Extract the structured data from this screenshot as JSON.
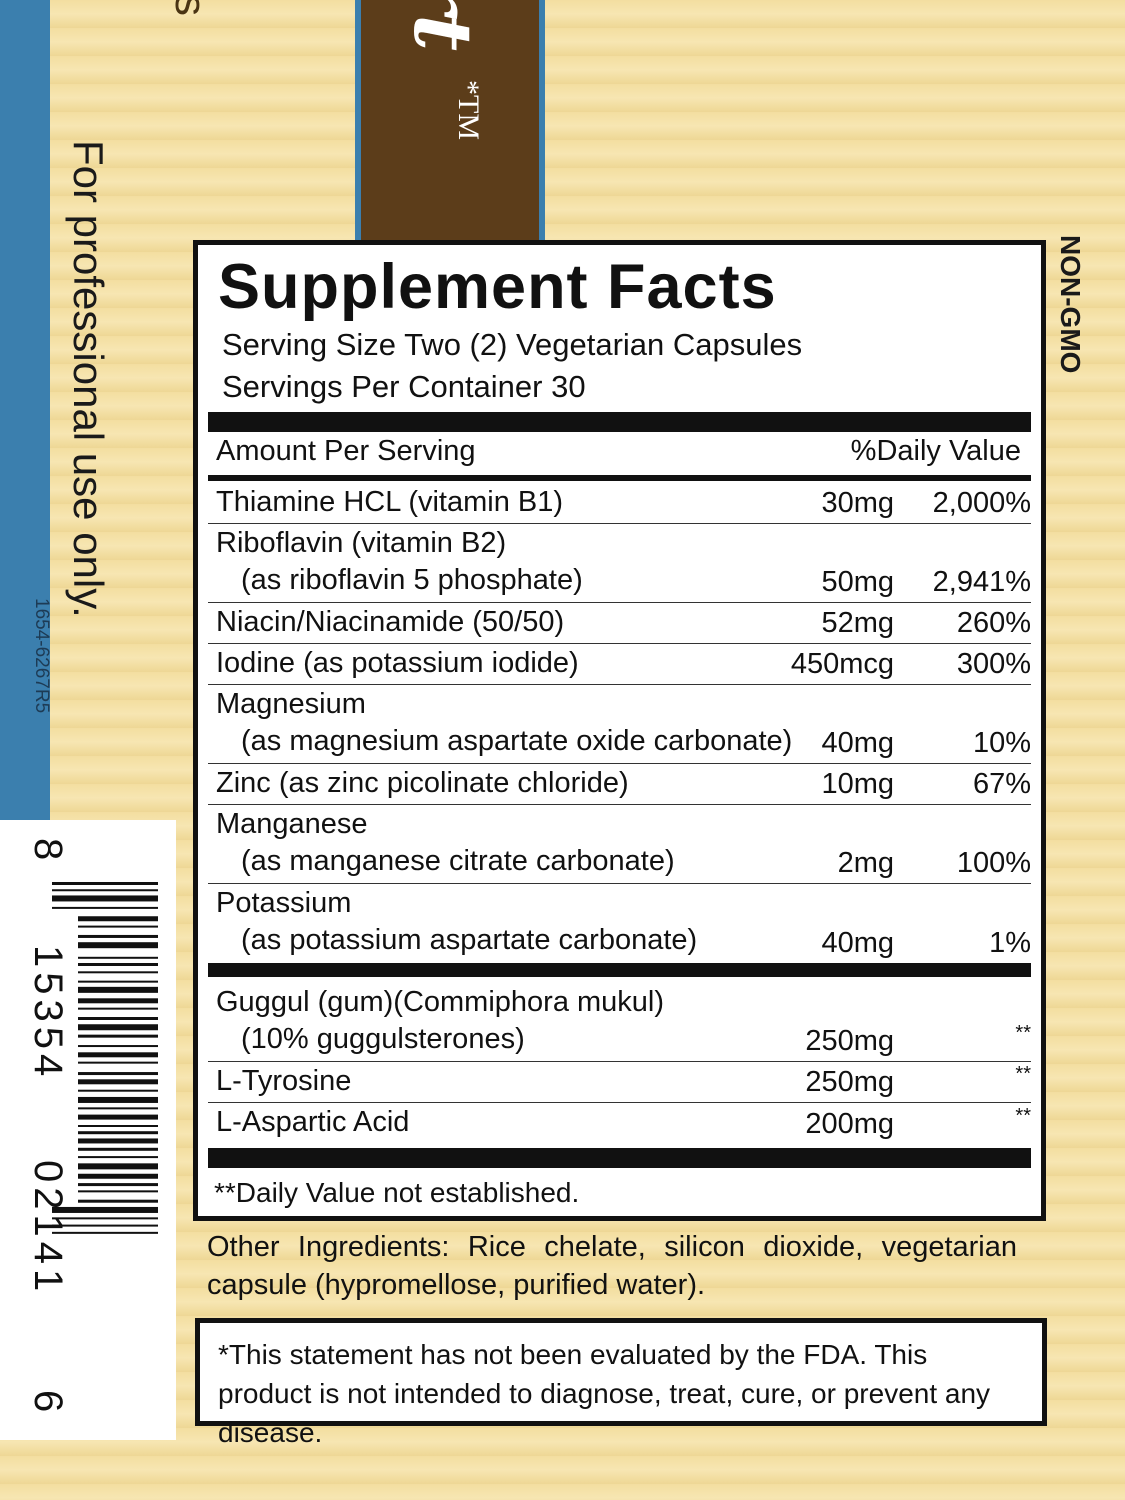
{
  "side": {
    "brand_letter": "s",
    "logo_text": "rt",
    "trademark": "*TM",
    "professional": "For professional use only.",
    "code": "1654-6267R5",
    "non_gmo": "NON-GMO"
  },
  "barcode": {
    "digits": [
      "8",
      "15354",
      "02141",
      "6"
    ]
  },
  "panel": {
    "title": "Supplement Facts",
    "serving_size": "Serving Size Two (2) Vegetarian Capsules",
    "servings_per_container": "Servings Per Container 30",
    "amount_header": "Amount Per Serving",
    "dv_header": "%Daily Value",
    "rows": [
      {
        "name": "Thiamine HCL (vitamin B1)",
        "sub": "",
        "amount": "30mg",
        "dv": "2,000%"
      },
      {
        "name": "Riboflavin (vitamin B2)",
        "sub": "(as riboflavin 5 phosphate)",
        "amount": "50mg",
        "dv": "2,941%"
      },
      {
        "name": "Niacin/Niacinamide (50/50)",
        "sub": "",
        "amount": "52mg",
        "dv": "260%"
      },
      {
        "name": "Iodine (as potassium iodide)",
        "sub": "",
        "amount": "450mcg",
        "dv": "300%"
      },
      {
        "name": "Magnesium",
        "sub": "(as magnesium aspartate oxide carbonate)",
        "amount": "40mg",
        "dv": "10%"
      },
      {
        "name": "Zinc (as zinc picolinate chloride)",
        "sub": "",
        "amount": "10mg",
        "dv": "67%"
      },
      {
        "name": "Manganese",
        "sub": "(as manganese citrate carbonate)",
        "amount": "2mg",
        "dv": "100%"
      },
      {
        "name": "Potassium",
        "sub": "(as potassium aspartate carbonate)",
        "amount": "40mg",
        "dv": "1%"
      }
    ],
    "rows2": [
      {
        "name": "Guggul (gum)(Commiphora mukul)",
        "sub": "(10% guggulsterones)",
        "amount": "250mg",
        "dv": "**"
      },
      {
        "name": "L-Tyrosine",
        "sub": "",
        "amount": "250mg",
        "dv": "**"
      },
      {
        "name": "L-Aspartic Acid",
        "sub": "",
        "amount": "200mg",
        "dv": "**"
      }
    ],
    "footnote": "**Daily Value not established."
  },
  "other_ingredients": "Other Ingredients: Rice chelate, silicon dioxide, vegetarian capsule (hypromellose, purified water).",
  "disclaimer": "*This statement has not been evaluated by the FDA. This product is not intended to diagnose, treat, cure, or prevent any disease."
}
